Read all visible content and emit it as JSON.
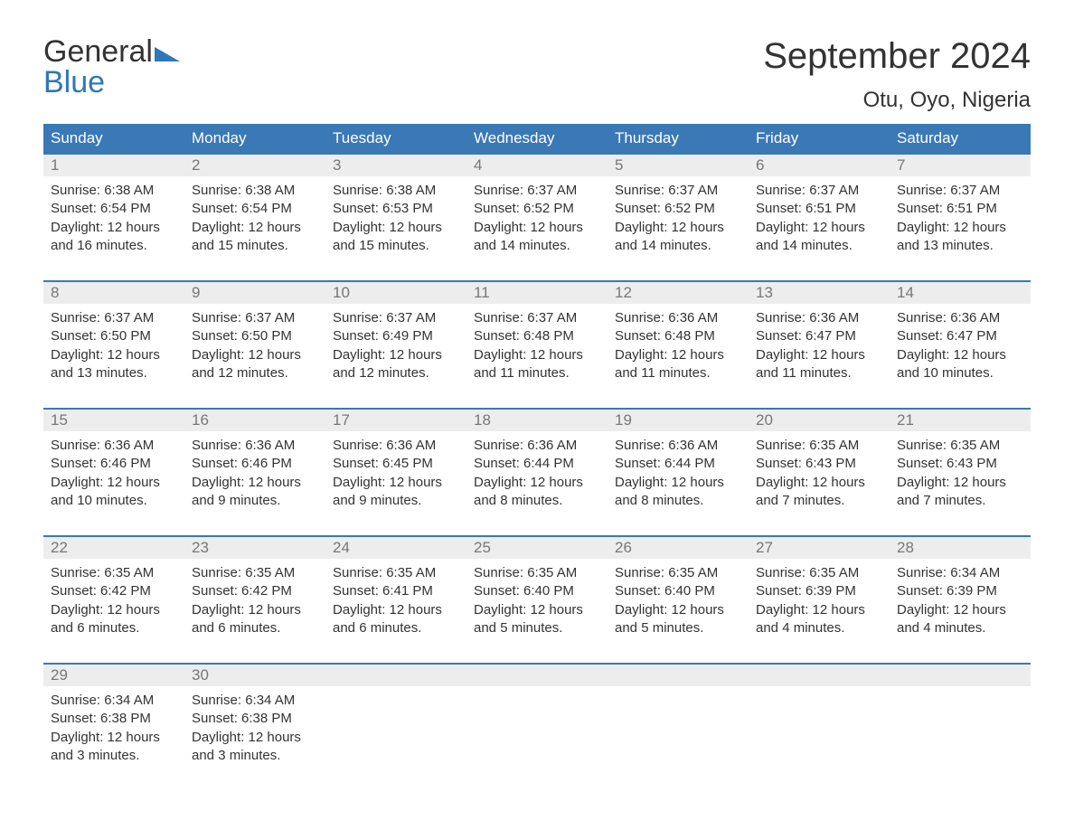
{
  "logo": {
    "text_top": "General",
    "text_bottom": "Blue",
    "accent_color": "#2f77b8",
    "text_color": "#333333"
  },
  "header": {
    "month_title": "September 2024",
    "location": "Otu, Oyo, Nigeria"
  },
  "colors": {
    "header_bar_bg": "#3b78b6",
    "header_bar_text": "#ffffff",
    "week_top_border": "#3b78b6",
    "daynum_bg": "#ededed",
    "daynum_text": "#777777",
    "body_text": "#333333",
    "page_bg": "#ffffff"
  },
  "weekday_labels": [
    "Sunday",
    "Monday",
    "Tuesday",
    "Wednesday",
    "Thursday",
    "Friday",
    "Saturday"
  ],
  "weeks": [
    [
      {
        "n": "1",
        "sunrise": "Sunrise: 6:38 AM",
        "sunset": "Sunset: 6:54 PM",
        "d1": "Daylight: 12 hours",
        "d2": "and 16 minutes."
      },
      {
        "n": "2",
        "sunrise": "Sunrise: 6:38 AM",
        "sunset": "Sunset: 6:54 PM",
        "d1": "Daylight: 12 hours",
        "d2": "and 15 minutes."
      },
      {
        "n": "3",
        "sunrise": "Sunrise: 6:38 AM",
        "sunset": "Sunset: 6:53 PM",
        "d1": "Daylight: 12 hours",
        "d2": "and 15 minutes."
      },
      {
        "n": "4",
        "sunrise": "Sunrise: 6:37 AM",
        "sunset": "Sunset: 6:52 PM",
        "d1": "Daylight: 12 hours",
        "d2": "and 14 minutes."
      },
      {
        "n": "5",
        "sunrise": "Sunrise: 6:37 AM",
        "sunset": "Sunset: 6:52 PM",
        "d1": "Daylight: 12 hours",
        "d2": "and 14 minutes."
      },
      {
        "n": "6",
        "sunrise": "Sunrise: 6:37 AM",
        "sunset": "Sunset: 6:51 PM",
        "d1": "Daylight: 12 hours",
        "d2": "and 14 minutes."
      },
      {
        "n": "7",
        "sunrise": "Sunrise: 6:37 AM",
        "sunset": "Sunset: 6:51 PM",
        "d1": "Daylight: 12 hours",
        "d2": "and 13 minutes."
      }
    ],
    [
      {
        "n": "8",
        "sunrise": "Sunrise: 6:37 AM",
        "sunset": "Sunset: 6:50 PM",
        "d1": "Daylight: 12 hours",
        "d2": "and 13 minutes."
      },
      {
        "n": "9",
        "sunrise": "Sunrise: 6:37 AM",
        "sunset": "Sunset: 6:50 PM",
        "d1": "Daylight: 12 hours",
        "d2": "and 12 minutes."
      },
      {
        "n": "10",
        "sunrise": "Sunrise: 6:37 AM",
        "sunset": "Sunset: 6:49 PM",
        "d1": "Daylight: 12 hours",
        "d2": "and 12 minutes."
      },
      {
        "n": "11",
        "sunrise": "Sunrise: 6:37 AM",
        "sunset": "Sunset: 6:48 PM",
        "d1": "Daylight: 12 hours",
        "d2": "and 11 minutes."
      },
      {
        "n": "12",
        "sunrise": "Sunrise: 6:36 AM",
        "sunset": "Sunset: 6:48 PM",
        "d1": "Daylight: 12 hours",
        "d2": "and 11 minutes."
      },
      {
        "n": "13",
        "sunrise": "Sunrise: 6:36 AM",
        "sunset": "Sunset: 6:47 PM",
        "d1": "Daylight: 12 hours",
        "d2": "and 11 minutes."
      },
      {
        "n": "14",
        "sunrise": "Sunrise: 6:36 AM",
        "sunset": "Sunset: 6:47 PM",
        "d1": "Daylight: 12 hours",
        "d2": "and 10 minutes."
      }
    ],
    [
      {
        "n": "15",
        "sunrise": "Sunrise: 6:36 AM",
        "sunset": "Sunset: 6:46 PM",
        "d1": "Daylight: 12 hours",
        "d2": "and 10 minutes."
      },
      {
        "n": "16",
        "sunrise": "Sunrise: 6:36 AM",
        "sunset": "Sunset: 6:46 PM",
        "d1": "Daylight: 12 hours",
        "d2": "and 9 minutes."
      },
      {
        "n": "17",
        "sunrise": "Sunrise: 6:36 AM",
        "sunset": "Sunset: 6:45 PM",
        "d1": "Daylight: 12 hours",
        "d2": "and 9 minutes."
      },
      {
        "n": "18",
        "sunrise": "Sunrise: 6:36 AM",
        "sunset": "Sunset: 6:44 PM",
        "d1": "Daylight: 12 hours",
        "d2": "and 8 minutes."
      },
      {
        "n": "19",
        "sunrise": "Sunrise: 6:36 AM",
        "sunset": "Sunset: 6:44 PM",
        "d1": "Daylight: 12 hours",
        "d2": "and 8 minutes."
      },
      {
        "n": "20",
        "sunrise": "Sunrise: 6:35 AM",
        "sunset": "Sunset: 6:43 PM",
        "d1": "Daylight: 12 hours",
        "d2": "and 7 minutes."
      },
      {
        "n": "21",
        "sunrise": "Sunrise: 6:35 AM",
        "sunset": "Sunset: 6:43 PM",
        "d1": "Daylight: 12 hours",
        "d2": "and 7 minutes."
      }
    ],
    [
      {
        "n": "22",
        "sunrise": "Sunrise: 6:35 AM",
        "sunset": "Sunset: 6:42 PM",
        "d1": "Daylight: 12 hours",
        "d2": "and 6 minutes."
      },
      {
        "n": "23",
        "sunrise": "Sunrise: 6:35 AM",
        "sunset": "Sunset: 6:42 PM",
        "d1": "Daylight: 12 hours",
        "d2": "and 6 minutes."
      },
      {
        "n": "24",
        "sunrise": "Sunrise: 6:35 AM",
        "sunset": "Sunset: 6:41 PM",
        "d1": "Daylight: 12 hours",
        "d2": "and 6 minutes."
      },
      {
        "n": "25",
        "sunrise": "Sunrise: 6:35 AM",
        "sunset": "Sunset: 6:40 PM",
        "d1": "Daylight: 12 hours",
        "d2": "and 5 minutes."
      },
      {
        "n": "26",
        "sunrise": "Sunrise: 6:35 AM",
        "sunset": "Sunset: 6:40 PM",
        "d1": "Daylight: 12 hours",
        "d2": "and 5 minutes."
      },
      {
        "n": "27",
        "sunrise": "Sunrise: 6:35 AM",
        "sunset": "Sunset: 6:39 PM",
        "d1": "Daylight: 12 hours",
        "d2": "and 4 minutes."
      },
      {
        "n": "28",
        "sunrise": "Sunrise: 6:34 AM",
        "sunset": "Sunset: 6:39 PM",
        "d1": "Daylight: 12 hours",
        "d2": "and 4 minutes."
      }
    ],
    [
      {
        "n": "29",
        "sunrise": "Sunrise: 6:34 AM",
        "sunset": "Sunset: 6:38 PM",
        "d1": "Daylight: 12 hours",
        "d2": "and 3 minutes."
      },
      {
        "n": "30",
        "sunrise": "Sunrise: 6:34 AM",
        "sunset": "Sunset: 6:38 PM",
        "d1": "Daylight: 12 hours",
        "d2": "and 3 minutes."
      },
      {
        "empty": true
      },
      {
        "empty": true
      },
      {
        "empty": true
      },
      {
        "empty": true
      },
      {
        "empty": true
      }
    ]
  ]
}
